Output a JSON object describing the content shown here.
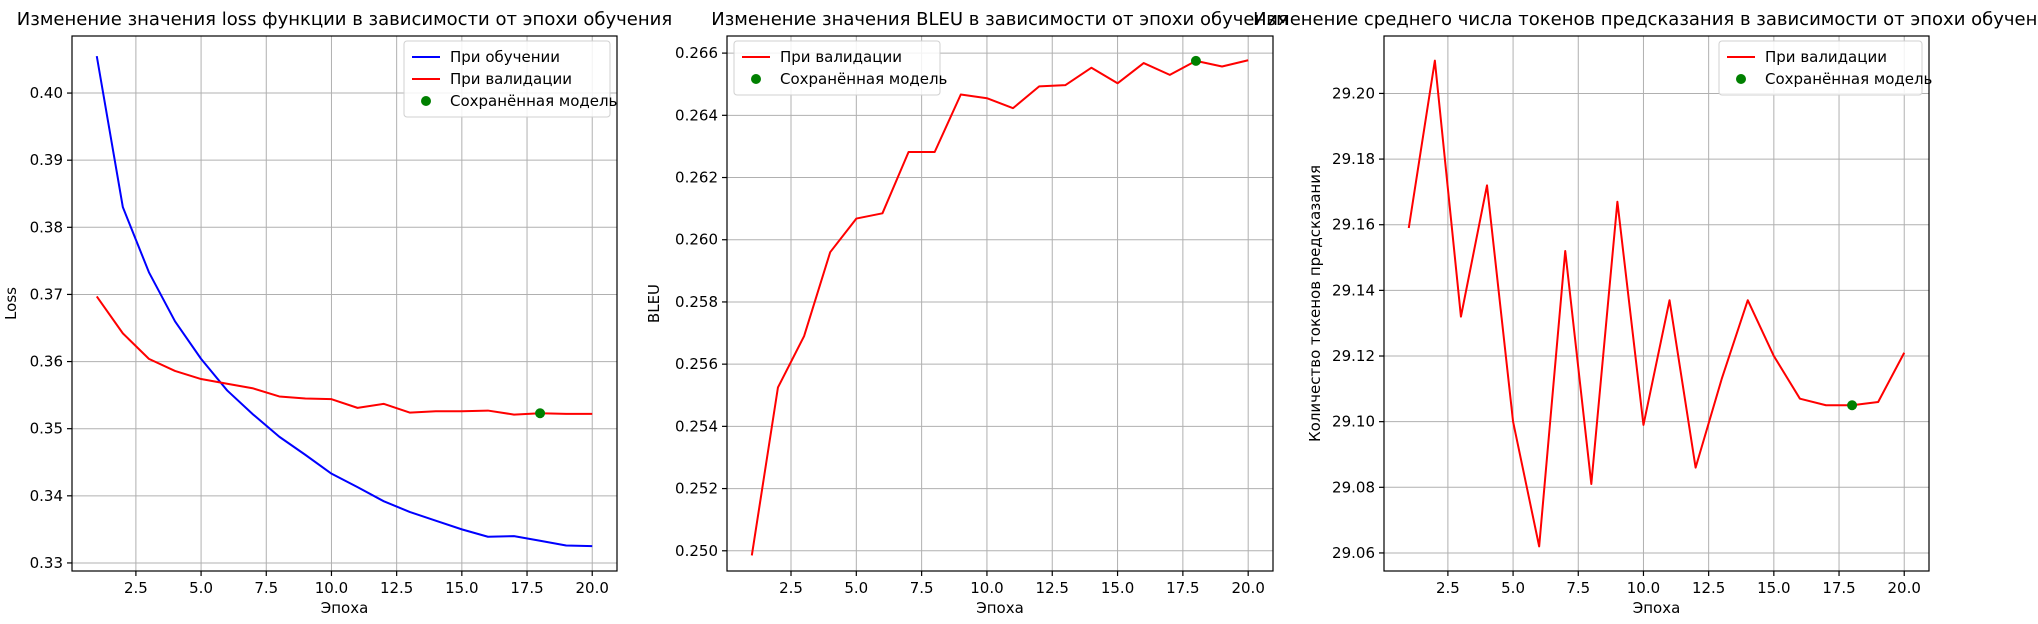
{
  "colors": {
    "train": "#0000ff",
    "val": "#ff0000",
    "saved": "#008000"
  },
  "chart_data": [
    {
      "type": "line",
      "title": "Изменение значения loss функции в зависимости от эпохи обучения",
      "xlabel": "Эпоха",
      "ylabel": "Loss",
      "xlim": [
        0.05,
        20.95
      ],
      "ylim": [
        0.3288,
        0.4085
      ],
      "xticks": [
        2.5,
        5.0,
        7.5,
        10.0,
        12.5,
        15.0,
        17.5,
        20.0
      ],
      "xtick_labels": [
        "2.5",
        "5.0",
        "7.5",
        "10.0",
        "12.5",
        "15.0",
        "17.5",
        "20.0"
      ],
      "yticks": [
        0.33,
        0.34,
        0.35,
        0.36,
        0.37,
        0.38,
        0.39,
        0.4
      ],
      "ytick_labels": [
        "0.33",
        "0.34",
        "0.35",
        "0.36",
        "0.37",
        "0.38",
        "0.39",
        "0.40"
      ],
      "grid": true,
      "legend_position": "top-right",
      "x": [
        1,
        2,
        3,
        4,
        5,
        6,
        7,
        8,
        9,
        10,
        11,
        12,
        13,
        14,
        15,
        16,
        17,
        18,
        19,
        20
      ],
      "series": [
        {
          "name": "При обучении",
          "color": "#0000ff",
          "kind": "line",
          "values": [
            0.4055,
            0.383,
            0.3733,
            0.366,
            0.3604,
            0.3557,
            0.3521,
            0.3488,
            0.3461,
            0.3433,
            0.3413,
            0.3392,
            0.3376,
            0.3363,
            0.335,
            0.3339,
            0.334,
            0.3333,
            0.3326,
            0.3325
          ]
        },
        {
          "name": "При валидации",
          "color": "#ff0000",
          "kind": "line",
          "values": [
            0.3697,
            0.3642,
            0.3604,
            0.3586,
            0.3574,
            0.3567,
            0.356,
            0.3548,
            0.3545,
            0.3544,
            0.3531,
            0.3537,
            0.3524,
            0.3526,
            0.3526,
            0.3527,
            0.3521,
            0.3523,
            0.3522,
            0.3522
          ]
        },
        {
          "name": "Сохранённая модель",
          "color": "#008000",
          "kind": "point",
          "points": [
            [
              18,
              0.3523
            ]
          ]
        }
      ]
    },
    {
      "type": "line",
      "title": "Изменение значения BLEU в зависимости от эпохи обучения",
      "xlabel": "Эпоха",
      "ylabel": "BLEU",
      "xlim": [
        0.05,
        20.95
      ],
      "ylim": [
        0.24935,
        0.26655
      ],
      "xticks": [
        2.5,
        5.0,
        7.5,
        10.0,
        12.5,
        15.0,
        17.5,
        20.0
      ],
      "xtick_labels": [
        "2.5",
        "5.0",
        "7.5",
        "10.0",
        "12.5",
        "15.0",
        "17.5",
        "20.0"
      ],
      "yticks": [
        0.25,
        0.252,
        0.254,
        0.256,
        0.258,
        0.26,
        0.262,
        0.264,
        0.266
      ],
      "ytick_labels": [
        "0.250",
        "0.252",
        "0.254",
        "0.256",
        "0.258",
        "0.260",
        "0.262",
        "0.264",
        "0.266"
      ],
      "grid": true,
      "legend_position": "top-left",
      "x": [
        1,
        2,
        3,
        4,
        5,
        6,
        7,
        8,
        9,
        10,
        11,
        12,
        13,
        14,
        15,
        16,
        17,
        18,
        19,
        20
      ],
      "series": [
        {
          "name": "При валидации",
          "color": "#ff0000",
          "kind": "line",
          "values": [
            0.24985,
            0.25525,
            0.2569,
            0.2596,
            0.26068,
            0.26085,
            0.26282,
            0.26282,
            0.26467,
            0.26455,
            0.26423,
            0.26493,
            0.26497,
            0.26553,
            0.26503,
            0.26568,
            0.2653,
            0.26575,
            0.26557,
            0.26577
          ]
        },
        {
          "name": "Сохранённая модель",
          "color": "#008000",
          "kind": "point",
          "points": [
            [
              18,
              0.26575
            ]
          ]
        }
      ]
    },
    {
      "type": "line",
      "title": "Изменение среднего числа токенов предсказания в зависимости от эпохи обучения",
      "xlabel": "Эпоха",
      "ylabel": "Количество токенов предсказания",
      "xlim": [
        0.05,
        20.95
      ],
      "ylim": [
        29.0545,
        29.2175
      ],
      "xticks": [
        2.5,
        5.0,
        7.5,
        10.0,
        12.5,
        15.0,
        17.5,
        20.0
      ],
      "xtick_labels": [
        "2.5",
        "5.0",
        "7.5",
        "10.0",
        "12.5",
        "15.0",
        "17.5",
        "20.0"
      ],
      "yticks": [
        29.06,
        29.08,
        29.1,
        29.12,
        29.14,
        29.16,
        29.18,
        29.2
      ],
      "ytick_labels": [
        "29.06",
        "29.08",
        "29.10",
        "29.12",
        "29.14",
        "29.16",
        "29.18",
        "29.20"
      ],
      "grid": true,
      "legend_position": "top-right",
      "x": [
        1,
        2,
        3,
        4,
        5,
        6,
        7,
        8,
        9,
        10,
        11,
        12,
        13,
        14,
        15,
        16,
        17,
        18,
        19,
        20
      ],
      "series": [
        {
          "name": "При валидации",
          "color": "#ff0000",
          "kind": "line",
          "values": [
            29.159,
            29.21,
            29.132,
            29.172,
            29.1,
            29.062,
            29.152,
            29.081,
            29.167,
            29.099,
            29.137,
            29.086,
            29.113,
            29.137,
            29.12,
            29.107,
            29.105,
            29.105,
            29.106,
            29.121
          ]
        },
        {
          "name": "Сохранённая модель",
          "color": "#008000",
          "kind": "point",
          "points": [
            [
              18,
              29.105
            ]
          ]
        }
      ]
    }
  ]
}
